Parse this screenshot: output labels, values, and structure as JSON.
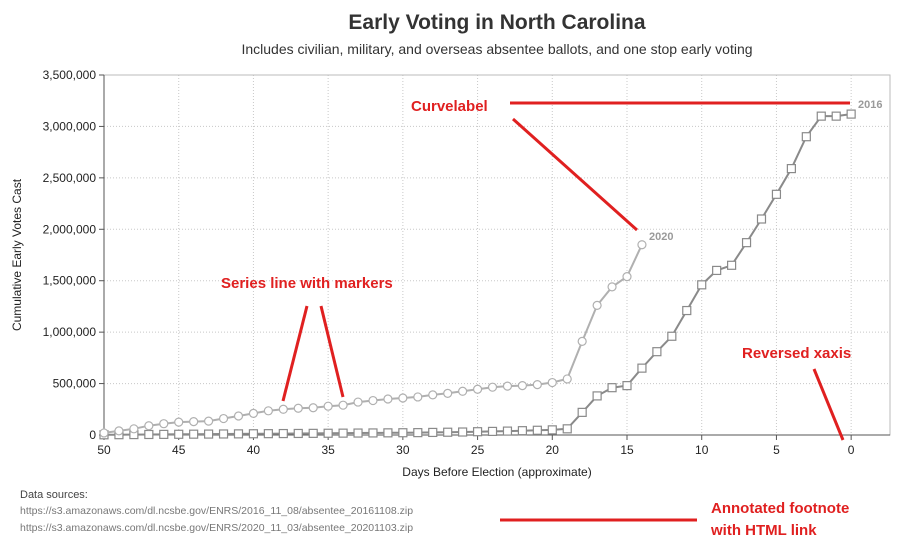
{
  "chart_data": {
    "type": "line",
    "title": "Early Voting in North Carolina",
    "subtitle": "Includes civilian, military, and overseas absentee ballots, and one stop early voting",
    "xlabel": "Days Before Election (approximate)",
    "ylabel": "Cumulative Early Votes Cast",
    "xlim": [
      50,
      -2.6
    ],
    "x_reversed": true,
    "ylim": [
      0,
      3500000
    ],
    "x_ticks": [
      50,
      45,
      40,
      35,
      30,
      25,
      20,
      15,
      10,
      5,
      0
    ],
    "x_tick_labels": [
      "50",
      "45",
      "40",
      "35",
      "30",
      "25",
      "20",
      "15",
      "10",
      "5",
      "0"
    ],
    "y_ticks": [
      0,
      500000,
      1000000,
      1500000,
      2000000,
      2500000,
      3000000,
      3500000
    ],
    "y_tick_labels": [
      "0",
      "500,000",
      "1,000,000",
      "1,500,000",
      "2,000,000",
      "2,500,000",
      "3,000,000",
      "3,500,000"
    ],
    "grid": true,
    "series": [
      {
        "name": "2016",
        "marker": "square",
        "color": "#8a8a8a",
        "x": [
          50,
          49,
          48,
          47,
          46,
          45,
          44,
          43,
          42,
          41,
          40,
          39,
          38,
          37,
          36,
          35,
          34,
          33,
          32,
          31,
          30,
          29,
          28,
          27,
          26,
          25,
          24,
          23,
          22,
          21,
          20,
          19,
          18,
          17,
          16,
          15,
          14,
          13,
          12,
          11,
          10,
          9,
          8,
          7,
          6,
          5,
          4,
          3,
          2,
          1,
          0
        ],
        "y": [
          2000,
          3000,
          4000,
          5000,
          6000,
          7000,
          8000,
          9000,
          10000,
          11000,
          12000,
          13000,
          14000,
          15000,
          16000,
          17000,
          18000,
          19000,
          20000,
          21000,
          22000,
          23000,
          25000,
          27000,
          29000,
          32000,
          35000,
          38000,
          42000,
          46000,
          50000,
          60000,
          220000,
          380000,
          460000,
          480000,
          650000,
          810000,
          960000,
          1210000,
          1460000,
          1600000,
          1650000,
          1870000,
          2100000,
          2340000,
          2590000,
          2900000,
          3100000,
          3100000,
          3120000
        ]
      },
      {
        "name": "2020",
        "marker": "circle",
        "color": "#b0b0b0",
        "x": [
          50,
          49,
          48,
          47,
          46,
          45,
          44,
          43,
          42,
          41,
          40,
          39,
          38,
          37,
          36,
          35,
          34,
          33,
          32,
          31,
          30,
          29,
          28,
          27,
          26,
          25,
          24,
          23,
          22,
          21,
          20,
          19,
          18,
          17,
          16,
          15,
          14
        ],
        "y": [
          20000,
          40000,
          60000,
          90000,
          110000,
          125000,
          130000,
          135000,
          160000,
          185000,
          210000,
          235000,
          250000,
          260000,
          265000,
          280000,
          290000,
          320000,
          335000,
          350000,
          360000,
          370000,
          390000,
          405000,
          425000,
          445000,
          465000,
          475000,
          480000,
          490000,
          510000,
          545000,
          910000,
          1260000,
          1440000,
          1540000,
          1850000
        ]
      }
    ],
    "annotations": [
      {
        "text": "Curvelabel"
      },
      {
        "text": "Series line with markers"
      },
      {
        "text": "Reversed xaxis"
      },
      {
        "text": "Annotated footnote"
      },
      {
        "text": "with HTML link"
      }
    ],
    "footnote": {
      "title": "Data sources:",
      "links": [
        "https://s3.amazonaws.com/dl.ncsbe.gov/ENRS/2016_11_08/absentee_20161108.zip",
        "https://s3.amazonaws.com/dl.ncsbe.gov/ENRS/2020_11_03/absentee_20201103.zip"
      ]
    },
    "annotation_color": "#e02020"
  }
}
